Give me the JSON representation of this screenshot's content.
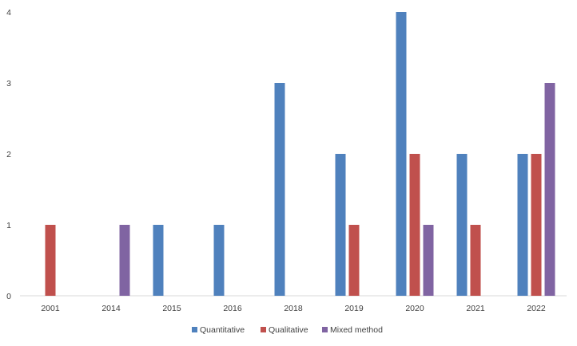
{
  "chart_data": {
    "type": "bar",
    "categories": [
      "2001",
      "2014",
      "2015",
      "2016",
      "2018",
      "2019",
      "2020",
      "2021",
      "2022"
    ],
    "series": [
      {
        "name": "Quantitative",
        "color": "#4f81bd",
        "values": [
          0,
          0,
          1,
          1,
          3,
          2,
          4,
          2,
          2
        ]
      },
      {
        "name": "Qualitative",
        "color": "#c0504d",
        "values": [
          1,
          0,
          0,
          0,
          0,
          1,
          2,
          1,
          2
        ]
      },
      {
        "name": "Mixed method",
        "color": "#8064a2",
        "values": [
          0,
          1,
          0,
          0,
          0,
          0,
          1,
          0,
          3
        ]
      }
    ],
    "yticks": [
      "0",
      "1",
      "2",
      "3",
      "4"
    ],
    "ylim": [
      0,
      4
    ],
    "grid": false,
    "legend_position": "bottom"
  }
}
